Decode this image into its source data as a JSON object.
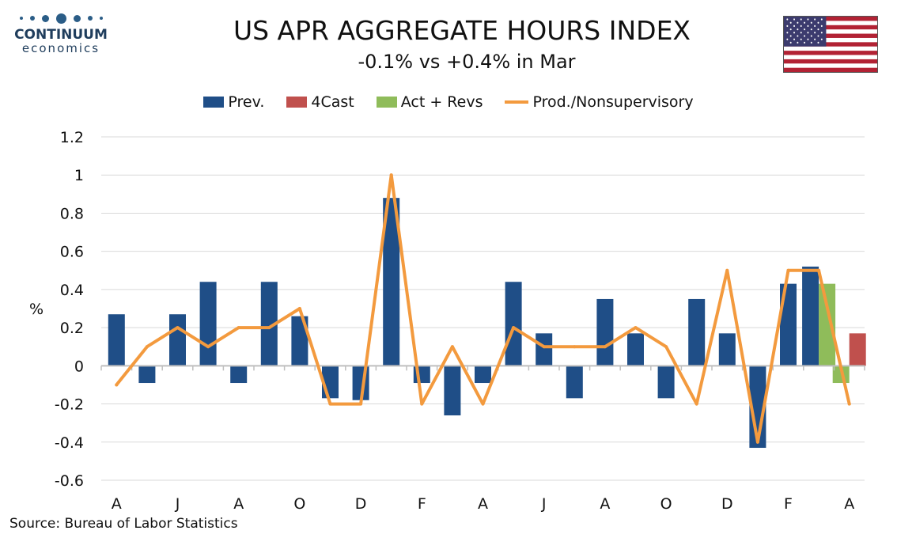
{
  "logo": {
    "word": "CONTINUUM",
    "sub": "economics"
  },
  "title": "US APR AGGREGATE HOURS INDEX",
  "subtitle": "-0.1% vs +0.4% in Mar",
  "source": "Source: Bureau of Labor Statistics",
  "colors": {
    "prev": "#1f4e87",
    "forecast": "#c0504d",
    "actual": "#8fbc5a",
    "line": "#f39a3e",
    "grid": "#d9d9d9",
    "axis": "#bfbfbf"
  },
  "chart_data": {
    "type": "bar",
    "ylabel": "%",
    "ylim": [
      -0.6,
      1.2
    ],
    "yticks": [
      "1.2",
      "1",
      "0.8",
      "0.6",
      "0.4",
      "0.2",
      "0",
      "-0.2",
      "-0.4",
      "-0.6"
    ],
    "ytick_values": [
      1.2,
      1.0,
      0.8,
      0.6,
      0.4,
      0.2,
      0,
      -0.2,
      -0.4,
      -0.6
    ],
    "xtick_labels": [
      "A",
      "J",
      "A",
      "O",
      "D",
      "F",
      "A",
      "J",
      "A",
      "O",
      "D",
      "F",
      "A"
    ],
    "xtick_period_index": [
      0,
      2,
      4,
      6,
      8,
      10,
      12,
      14,
      16,
      18,
      20,
      22,
      24
    ],
    "periods": 25,
    "grid": true,
    "legend_position": "top",
    "series": [
      {
        "name": "Prev.",
        "kind": "bar",
        "values": [
          0.27,
          -0.09,
          0.27,
          0.44,
          -0.09,
          0.44,
          0.26,
          -0.17,
          -0.18,
          0.88,
          -0.09,
          -0.26,
          -0.09,
          0.44,
          0.17,
          -0.17,
          0.35,
          0.17,
          -0.17,
          0.35,
          0.17,
          -0.43,
          0.43,
          0.52,
          null
        ]
      },
      {
        "name": "4Cast",
        "kind": "bar",
        "values": [
          null,
          null,
          null,
          null,
          null,
          null,
          null,
          null,
          null,
          null,
          null,
          null,
          null,
          null,
          null,
          null,
          null,
          null,
          null,
          null,
          null,
          null,
          null,
          null,
          0.17
        ]
      },
      {
        "name": "Act + Revs",
        "kind": "bar",
        "values": [
          null,
          null,
          null,
          null,
          null,
          null,
          null,
          null,
          null,
          null,
          null,
          null,
          null,
          null,
          null,
          null,
          null,
          null,
          null,
          null,
          null,
          null,
          null,
          0.43,
          -0.09
        ]
      },
      {
        "name": "Prod./Nonsupervisory",
        "kind": "line",
        "values": [
          -0.1,
          0.1,
          0.2,
          0.1,
          0.2,
          0.2,
          0.3,
          -0.2,
          -0.2,
          1.0,
          -0.2,
          0.1,
          -0.2,
          0.2,
          0.1,
          0.1,
          0.1,
          0.2,
          0.1,
          -0.2,
          0.5,
          -0.4,
          0.5,
          0.5,
          -0.2
        ]
      }
    ]
  }
}
